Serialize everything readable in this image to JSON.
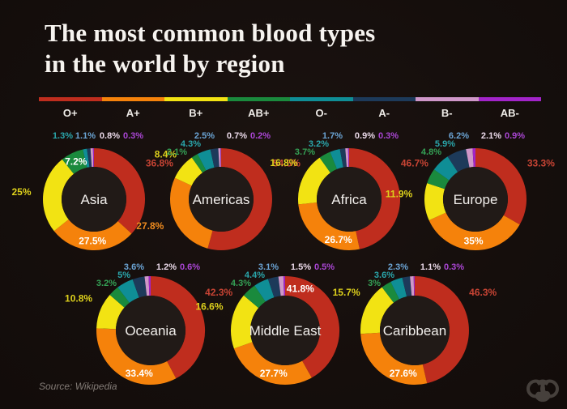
{
  "title": {
    "line1": "The most common blood types",
    "line2": "in the world by region"
  },
  "source": "Source: Wikipedia",
  "colors": {
    "background": "#150e0c",
    "inner_circle": "#211a17",
    "title_text": "#f6f3ef",
    "region_text": "#f2efec",
    "on_ring_label": "#ffffff",
    "source_text": "#847c77",
    "logo": "#46403c"
  },
  "chart_data": {
    "type": "donut",
    "unit": "%",
    "title": "The most common blood types in the world by region",
    "legend_position": "top",
    "blood_types": [
      {
        "id": "O+",
        "color": "#bf2d1e",
        "label_color": "#c84434"
      },
      {
        "id": "A+",
        "color": "#f5820b",
        "label_color": "#ef8b1f"
      },
      {
        "id": "B+",
        "color": "#f2e313",
        "label_color": "#ddd01c"
      },
      {
        "id": "AB+",
        "color": "#1a8a3d",
        "label_color": "#34a055"
      },
      {
        "id": "O-",
        "color": "#0f8e96",
        "label_color": "#2aa6ab"
      },
      {
        "id": "A-",
        "color": "#1d3a5a",
        "label_color": "#6ba4d4"
      },
      {
        "id": "B-",
        "color": "#cf97c9",
        "label_color": "#ead9e8"
      },
      {
        "id": "AB-",
        "color": "#a224c9",
        "label_color": "#aa46d4"
      }
    ],
    "regions": [
      {
        "name": "Asia",
        "values": [
          36.8,
          27.5,
          25,
          7.2,
          1.3,
          1.1,
          0.8,
          0.3
        ]
      },
      {
        "name": "Americas",
        "values": [
          54.5,
          27.8,
          8.4,
          2.1,
          4.3,
          2.5,
          0.7,
          0.2
        ]
      },
      {
        "name": "Africa",
        "values": [
          46.7,
          26.7,
          16.8,
          3.7,
          3.2,
          1.7,
          0.9,
          0.3
        ]
      },
      {
        "name": "Europe",
        "values": [
          33.3,
          35,
          11.9,
          4.8,
          5.9,
          6.2,
          2.1,
          0.9
        ]
      },
      {
        "name": "Oceania",
        "values": [
          42.3,
          33.4,
          10.8,
          3.2,
          5,
          3.6,
          1.2,
          0.6
        ]
      },
      {
        "name": "Middle East",
        "values": [
          41.8,
          27.7,
          16.6,
          4.3,
          4.4,
          3.1,
          1.5,
          0.5
        ]
      },
      {
        "name": "Caribbean",
        "values": [
          46.3,
          27.6,
          15.7,
          3,
          3.6,
          2.3,
          1.1,
          0.3
        ]
      }
    ]
  }
}
